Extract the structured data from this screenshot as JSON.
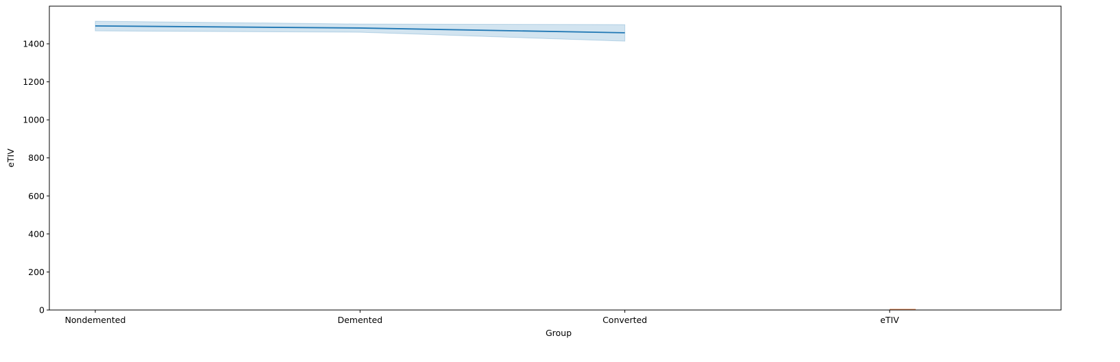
{
  "chart_data": {
    "type": "line",
    "x_label": "Group",
    "y_label": "eTIV",
    "categories": [
      "Nondemented",
      "Demented",
      "Converted",
      "eTIV"
    ],
    "series": [
      {
        "color": "#1f77b4",
        "values": [
          1494,
          1483,
          1458,
          null
        ],
        "ci_lower": [
          1468,
          1461,
          1414,
          null
        ],
        "ci_upper": [
          1519,
          1504,
          1501,
          null
        ]
      },
      {
        "color": "#dd8452",
        "values": [
          null,
          null,
          null,
          2
        ],
        "kind": "bar"
      }
    ],
    "ylim": [
      0,
      1598
    ],
    "yticks": [
      0,
      200,
      400,
      600,
      800,
      1000,
      1200,
      1400
    ]
  }
}
